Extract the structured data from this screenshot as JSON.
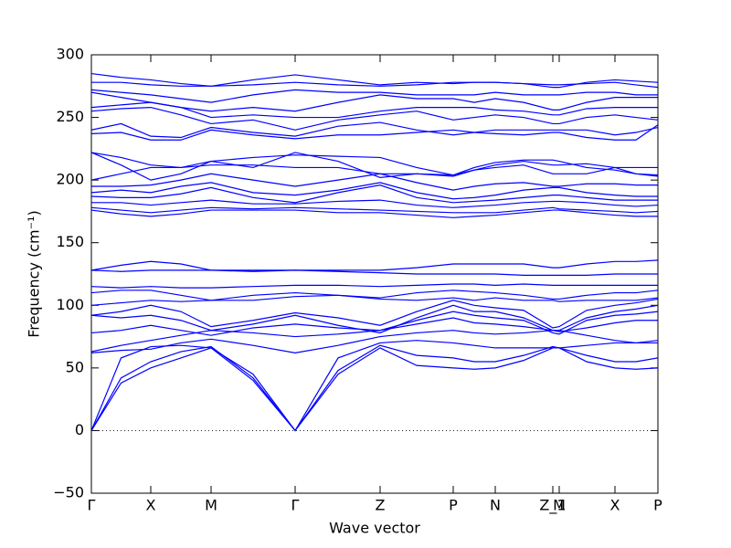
{
  "chart_data": {
    "type": "line",
    "xlabel": "Wave vector",
    "ylabel": "Frequency (cm⁻¹)",
    "xlim": [
      0,
      6.2
    ],
    "ylim": [
      -50,
      300
    ],
    "yticks": [
      {
        "value": -50,
        "label": "−50"
      },
      0,
      50,
      100,
      150,
      200,
      250,
      300
    ],
    "xticks": [
      {
        "value": 0,
        "label": "Γ"
      },
      {
        "value": 0.65,
        "label": "X"
      },
      {
        "value": 1.31,
        "label": "M"
      },
      {
        "value": 2.23,
        "label": "Γ"
      },
      {
        "value": 3.16,
        "label": "Z"
      },
      {
        "value": 3.96,
        "label": "P"
      },
      {
        "value": 4.42,
        "label": "N"
      },
      {
        "value": 5.05,
        "label": "Z_1"
      },
      {
        "value": 5.12,
        "label": "M"
      },
      {
        "value": 5.73,
        "label": "X"
      },
      {
        "value": 6.2,
        "label": "P"
      }
    ],
    "zero_line": true,
    "x": [
      0,
      0.325,
      0.65,
      0.98,
      1.31,
      1.77,
      2.23,
      2.7,
      3.16,
      3.56,
      3.96,
      4.19,
      4.42,
      4.73,
      5.05,
      5.12,
      5.42,
      5.73,
      5.96,
      6.2
    ],
    "series": [
      {
        "color": "#0000ff",
        "values": [
          0,
          38,
          50,
          58,
          66,
          40,
          0,
          45,
          66,
          52,
          50,
          49,
          50,
          56,
          66,
          66,
          55,
          50,
          49,
          50
        ]
      },
      {
        "color": "#0000ff",
        "values": [
          0,
          42,
          55,
          63,
          67,
          42,
          0,
          48,
          68,
          60,
          58,
          55,
          55,
          60,
          67,
          66,
          60,
          55,
          55,
          58
        ]
      },
      {
        "color": "#0000ff",
        "values": [
          0,
          58,
          67,
          68,
          66,
          45,
          0,
          58,
          70,
          72,
          70,
          68,
          66,
          66,
          66,
          66,
          68,
          70,
          70,
          72
        ]
      },
      {
        "color": "#0000ff",
        "values": [
          62,
          64,
          65,
          70,
          73,
          68,
          62,
          68,
          75,
          78,
          80,
          78,
          77,
          78,
          80,
          80,
          76,
          72,
          70,
          70
        ]
      },
      {
        "color": "#0000ff",
        "values": [
          63,
          68,
          72,
          76,
          80,
          78,
          75,
          77,
          80,
          85,
          90,
          86,
          85,
          83,
          80,
          79,
          82,
          86,
          88,
          88
        ]
      },
      {
        "color": "#0000ff",
        "values": [
          78,
          80,
          84,
          80,
          76,
          82,
          85,
          82,
          80,
          88,
          95,
          92,
          90,
          88,
          78,
          77,
          88,
          92,
          93,
          95
        ]
      },
      {
        "color": "#0000ff",
        "values": [
          92,
          90,
          92,
          88,
          80,
          85,
          92,
          84,
          78,
          90,
          100,
          95,
          95,
          90,
          80,
          80,
          90,
          95,
          97,
          100
        ]
      },
      {
        "color": "#0000ff",
        "values": [
          92,
          95,
          100,
          95,
          83,
          88,
          94,
          90,
          84,
          95,
          104,
          100,
          98,
          96,
          82,
          83,
          96,
          100,
          102,
          105
        ]
      },
      {
        "color": "#0000ff",
        "values": [
          100,
          102,
          104,
          103,
          104,
          104,
          107,
          108,
          105,
          104,
          106,
          104,
          106,
          104,
          104,
          103,
          104,
          104,
          104,
          106
        ]
      },
      {
        "color": "#0000ff",
        "values": [
          110,
          112,
          112,
          108,
          104,
          108,
          110,
          108,
          106,
          110,
          112,
          111,
          110,
          108,
          105,
          105,
          108,
          110,
          110,
          112
        ]
      },
      {
        "color": "#0000ff",
        "values": [
          115,
          114,
          115,
          114,
          114,
          115,
          116,
          116,
          115,
          116,
          117,
          117,
          116,
          117,
          116,
          116,
          116,
          116,
          116,
          116
        ]
      },
      {
        "color": "#0000ff",
        "values": [
          128,
          127,
          128,
          128,
          128,
          127,
          128,
          127,
          126,
          125,
          125,
          125,
          125,
          124,
          124,
          124,
          124,
          125,
          125,
          125
        ]
      },
      {
        "color": "#0000ff",
        "values": [
          128,
          132,
          135,
          133,
          128,
          128,
          128,
          128,
          128,
          130,
          133,
          133,
          133,
          133,
          130,
          130,
          133,
          135,
          135,
          136
        ]
      },
      {
        "color": "#0000ff",
        "values": [
          176,
          173,
          171,
          173,
          176,
          176,
          176,
          174,
          174,
          172,
          170,
          171,
          172,
          174,
          176,
          176,
          174,
          172,
          171,
          171
        ]
      },
      {
        "color": "#0000ff",
        "values": [
          178,
          176,
          174,
          176,
          178,
          177,
          178,
          177,
          176,
          175,
          174,
          174,
          174,
          176,
          178,
          177,
          176,
          175,
          174,
          175
        ]
      },
      {
        "color": "#0000ff",
        "values": [
          182,
          182,
          180,
          182,
          184,
          181,
          181,
          183,
          184,
          180,
          178,
          179,
          180,
          182,
          183,
          183,
          182,
          180,
          179,
          180
        ]
      },
      {
        "color": "#0000ff",
        "values": [
          187,
          186,
          186,
          189,
          194,
          186,
          182,
          190,
          196,
          186,
          182,
          183,
          184,
          186,
          188,
          188,
          186,
          184,
          184,
          184
        ]
      },
      {
        "color": "#0000ff",
        "values": [
          190,
          192,
          190,
          195,
          198,
          190,
          188,
          192,
          198,
          190,
          185,
          186,
          188,
          192,
          194,
          194,
          190,
          188,
          187,
          187
        ]
      },
      {
        "color": "#0000ff",
        "values": [
          195,
          195,
          196,
          200,
          205,
          200,
          195,
          200,
          205,
          198,
          192,
          195,
          197,
          198,
          195,
          195,
          197,
          197,
          196,
          196
        ]
      },
      {
        "color": "#0000ff",
        "values": [
          200,
          205,
          210,
          210,
          212,
          212,
          210,
          210,
          205,
          205,
          203,
          208,
          212,
          215,
          212,
          212,
          213,
          210,
          205,
          203
        ]
      },
      {
        "color": "#0000ff",
        "values": [
          222,
          218,
          212,
          210,
          215,
          210,
          222,
          215,
          202,
          205,
          204,
          210,
          214,
          216,
          216,
          215,
          210,
          208,
          205,
          204
        ]
      },
      {
        "color": "#0000ff",
        "values": [
          222,
          212,
          200,
          205,
          215,
          218,
          220,
          219,
          218,
          210,
          204,
          208,
          210,
          212,
          205,
          205,
          205,
          210,
          210,
          210
        ]
      },
      {
        "color": "#0000ff",
        "values": [
          237,
          238,
          232,
          232,
          240,
          236,
          233,
          236,
          236,
          238,
          240,
          238,
          237,
          236,
          238,
          238,
          234,
          232,
          232,
          244
        ]
      },
      {
        "color": "#0000ff",
        "values": [
          240,
          245,
          235,
          234,
          242,
          238,
          235,
          243,
          246,
          240,
          236,
          238,
          240,
          240,
          240,
          240,
          240,
          236,
          238,
          242
        ]
      },
      {
        "color": "#0000ff",
        "values": [
          255,
          257,
          258,
          252,
          245,
          248,
          240,
          248,
          252,
          255,
          248,
          250,
          252,
          250,
          245,
          245,
          250,
          252,
          250,
          248
        ]
      },
      {
        "color": "#0000ff",
        "values": [
          258,
          260,
          262,
          258,
          250,
          252,
          250,
          250,
          255,
          258,
          258,
          258,
          256,
          255,
          252,
          252,
          257,
          258,
          258,
          258
        ]
      },
      {
        "color": "#0000ff",
        "values": [
          270,
          266,
          262,
          258,
          255,
          258,
          255,
          262,
          268,
          265,
          265,
          262,
          265,
          262,
          256,
          256,
          262,
          266,
          266,
          266
        ]
      },
      {
        "color": "#0000ff",
        "values": [
          272,
          270,
          268,
          265,
          262,
          268,
          272,
          270,
          270,
          268,
          268,
          268,
          270,
          268,
          268,
          268,
          270,
          270,
          268,
          268
        ]
      },
      {
        "color": "#0000ff",
        "values": [
          278,
          278,
          276,
          275,
          275,
          276,
          278,
          276,
          275,
          276,
          278,
          278,
          278,
          277,
          276,
          276,
          277,
          278,
          276,
          274
        ]
      },
      {
        "color": "#0000ff",
        "values": [
          285,
          282,
          280,
          277,
          275,
          280,
          284,
          280,
          276,
          278,
          277,
          278,
          278,
          277,
          274,
          274,
          278,
          280,
          279,
          278
        ]
      }
    ]
  }
}
